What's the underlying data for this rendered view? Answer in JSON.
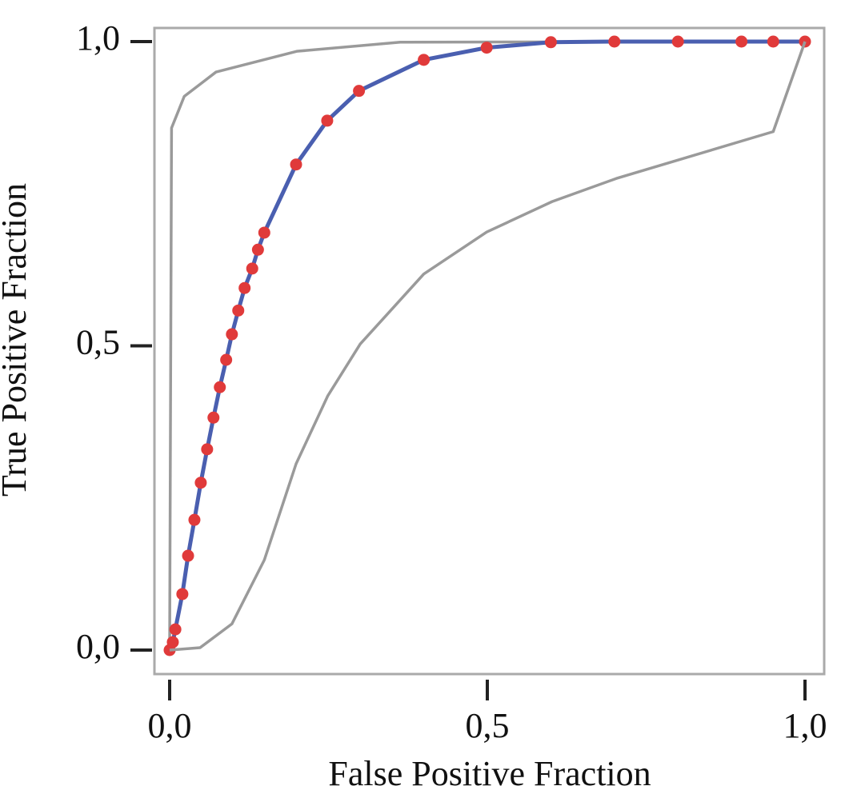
{
  "chart_data": {
    "type": "line",
    "xlabel": "False Positive Fraction",
    "ylabel": "True Positive Fraction",
    "xlim": [
      0,
      1
    ],
    "ylim": [
      0,
      1
    ],
    "xticks": [
      {
        "value": 0,
        "label": "0,0"
      },
      {
        "value": 0.5,
        "label": "0,5"
      },
      {
        "value": 1,
        "label": "1,0"
      }
    ],
    "yticks": [
      {
        "value": 0,
        "label": "0,0"
      },
      {
        "value": 0.5,
        "label": "0,5"
      },
      {
        "value": 1,
        "label": "1,0"
      }
    ],
    "series": [
      {
        "color": "#9a9a9a",
        "markers": false,
        "x": [
          0,
          0.003,
          0.023,
          0.073,
          0.2,
          0.363,
          1
        ],
        "values": [
          0,
          0.858,
          0.91,
          0.95,
          0.984,
          0.999,
          1
        ]
      },
      {
        "color": "#4a5fb0",
        "markers": true,
        "marker_color": "#e03a3a",
        "x": [
          0,
          0.005,
          0.009,
          0.02,
          0.029,
          0.039,
          0.049,
          0.059,
          0.069,
          0.079,
          0.089,
          0.098,
          0.108,
          0.118,
          0.13,
          0.139,
          0.149,
          0.199,
          0.248,
          0.298,
          0.4,
          0.499,
          0.6,
          0.7,
          0.8,
          0.9,
          0.95,
          1
        ],
        "values": [
          0,
          0.013,
          0.034,
          0.092,
          0.155,
          0.214,
          0.275,
          0.33,
          0.382,
          0.432,
          0.477,
          0.519,
          0.558,
          0.595,
          0.627,
          0.658,
          0.686,
          0.798,
          0.87,
          0.919,
          0.97,
          0.99,
          0.999,
          1,
          1,
          1,
          1,
          1
        ]
      },
      {
        "color": "#9a9a9a",
        "markers": false,
        "x": [
          0,
          0.048,
          0.098,
          0.149,
          0.199,
          0.249,
          0.3,
          0.4,
          0.499,
          0.602,
          0.703,
          0.95,
          1
        ],
        "values": [
          0,
          0.004,
          0.043,
          0.148,
          0.306,
          0.418,
          0.503,
          0.618,
          0.687,
          0.737,
          0.775,
          0.852,
          1
        ]
      }
    ]
  }
}
